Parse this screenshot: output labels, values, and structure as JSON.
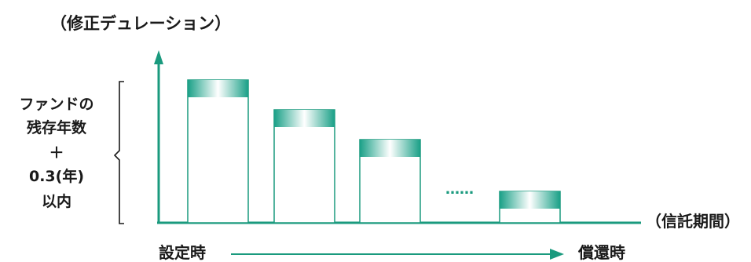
{
  "diagram": {
    "y_axis_title": "（修正デュレーション）",
    "x_axis_title": "（信託期間）",
    "brace_text_lines": [
      "ファンドの",
      "残存年数",
      "＋",
      "0.3(年)",
      "以内"
    ],
    "ellipsis": "……",
    "timeline": {
      "start_label": "設定時",
      "end_label": "償還時"
    },
    "colors": {
      "axis": "#1a9a7e",
      "bar_cap_dark": "#1aa087",
      "bar_cap_light": "#ffffff",
      "text": "#1a1a1a"
    }
  }
}
